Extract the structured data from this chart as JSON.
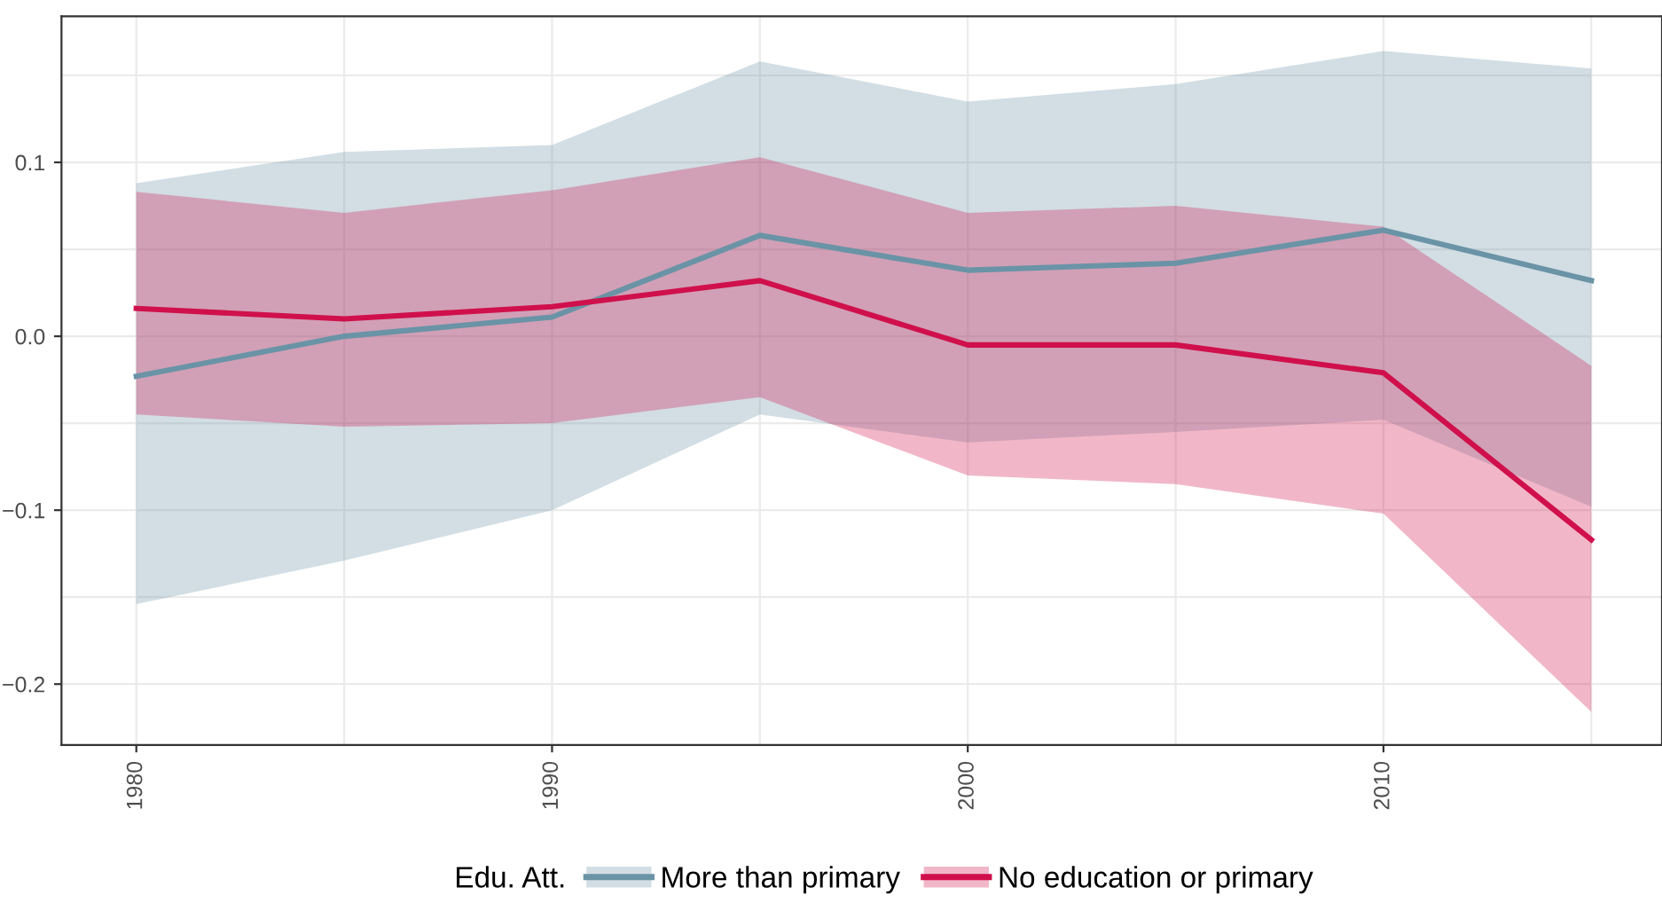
{
  "chart_data": {
    "type": "line",
    "x": [
      1980,
      1985,
      1990,
      1995,
      2000,
      2005,
      2010,
      2015
    ],
    "series": [
      {
        "name": "More than primary",
        "color": "#6a93a6",
        "values": [
          -0.023,
          0.0,
          0.011,
          0.058,
          0.038,
          0.042,
          0.061,
          0.032
        ],
        "lower": [
          -0.154,
          -0.129,
          -0.1,
          -0.045,
          -0.061,
          -0.055,
          -0.048,
          -0.098
        ],
        "upper": [
          0.088,
          0.106,
          0.11,
          0.158,
          0.135,
          0.145,
          0.164,
          0.154
        ]
      },
      {
        "name": "No education or primary",
        "color": "#d0104c",
        "values": [
          0.016,
          0.01,
          0.017,
          0.032,
          -0.005,
          -0.005,
          -0.021,
          -0.117
        ],
        "lower": [
          -0.045,
          -0.052,
          -0.05,
          -0.035,
          -0.08,
          -0.085,
          -0.102,
          -0.216
        ],
        "upper": [
          0.083,
          0.071,
          0.084,
          0.103,
          0.071,
          0.075,
          0.063,
          -0.017
        ]
      }
    ],
    "legend_title": "Edu. Att.",
    "legend": "bottom",
    "grid": true,
    "xlim": [
      1978.2,
      2016.7
    ],
    "xticks": [
      1980,
      {
        "value": 1985,
        "label": null
      },
      1990,
      {
        "value": 1995,
        "label": null
      },
      2000,
      {
        "value": 2005,
        "label": null
      },
      2010,
      {
        "value": 2015,
        "label": null
      }
    ],
    "ylim": [
      -0.235,
      0.184
    ],
    "yticks": [
      {
        "value": -0.2,
        "label": "−0.2"
      },
      {
        "value": -0.15,
        "label": null
      },
      {
        "value": -0.1,
        "label": "−0.1"
      },
      {
        "value": -0.05,
        "label": null
      },
      {
        "value": 0.0,
        "label": "0.0"
      },
      {
        "value": 0.05,
        "label": null
      },
      0.1,
      {
        "value": 0.15,
        "label": null
      }
    ],
    "line_style": "solid"
  }
}
